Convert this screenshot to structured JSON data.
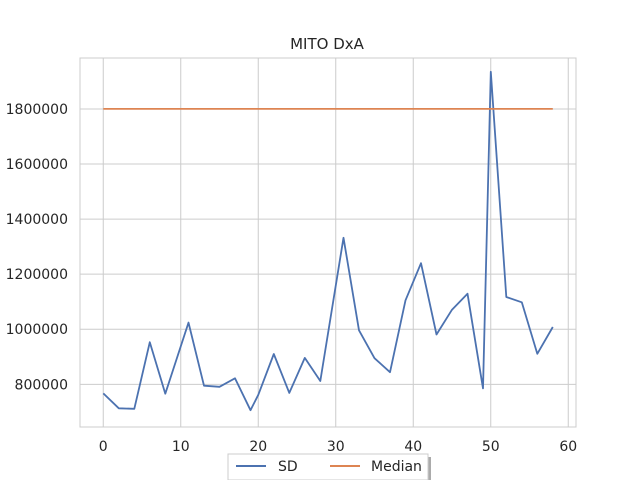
{
  "chart_data": {
    "type": "line",
    "title": "MITO DxA",
    "xlabel": "",
    "ylabel": "",
    "xlim": [
      -3,
      61
    ],
    "ylim": [
      645000,
      1985000
    ],
    "xticks": [
      0,
      10,
      20,
      30,
      40,
      50,
      60
    ],
    "xtick_labels": [
      "0",
      "10",
      "20",
      "30",
      "40",
      "50",
      "60"
    ],
    "yticks": [
      800000,
      1000000,
      1200000,
      1400000,
      1600000,
      1800000
    ],
    "ytick_labels": [
      "800000",
      "1000000",
      "1200000",
      "1400000",
      "1600000",
      "1800000"
    ],
    "grid": true,
    "legend_position": "bottom-center",
    "series": [
      {
        "name": "SD",
        "color": "#4c72b0",
        "x": [
          0,
          2,
          4,
          6,
          8,
          11,
          13,
          15,
          17,
          19,
          20,
          22,
          24,
          26,
          28,
          31,
          33,
          35,
          37,
          39,
          41,
          43,
          45,
          47,
          49,
          50,
          52,
          54,
          56,
          58
        ],
        "y": [
          767000,
          713000,
          711000,
          953000,
          766000,
          1024000,
          795000,
          791000,
          822000,
          706000,
          762000,
          910000,
          769000,
          896000,
          812000,
          1332000,
          996000,
          895000,
          844000,
          1105000,
          1240000,
          981000,
          1071000,
          1129000,
          785000,
          1935000,
          1117000,
          1098000,
          911000,
          1008000
        ]
      },
      {
        "name": "Median",
        "color": "#dd8452",
        "x": [
          0,
          58
        ],
        "y": [
          1800000,
          1800000
        ]
      }
    ]
  }
}
